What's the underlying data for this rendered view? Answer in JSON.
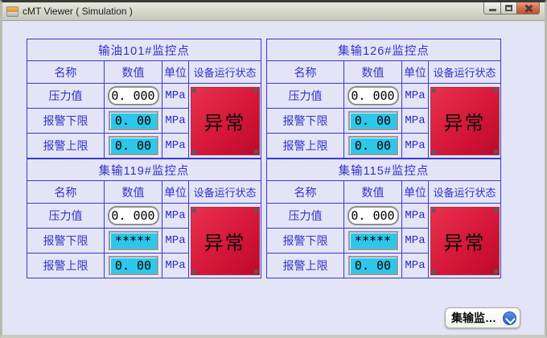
{
  "window": {
    "title": "cMT Viewer ( Simulation )",
    "controls": {
      "minimize_label": "Minimize",
      "maximize_label": "Maximize",
      "close_label": "Close"
    }
  },
  "colors": {
    "accent_blue": "#3333cc",
    "table_border_blue": "#3a3acc",
    "field_cyan": "#2ec6e9",
    "status_red": "#d5173a",
    "content_background": "#e3e4f6",
    "titlebar_gray": "#c8c9ba",
    "close_button_orange": "#c35430",
    "dropdown_circle_blue": "#2c5fc4"
  },
  "column_headers": [
    "名称",
    "数值",
    "单位",
    "设备运行状态"
  ],
  "panels": [
    {
      "title": "输油101#监控点",
      "rows": [
        {
          "name": "压力值",
          "value": "0. 000",
          "unit": "MPa"
        },
        {
          "name": "报警下限",
          "value": "0. 00",
          "unit": "MPa"
        },
        {
          "name": "报警上限",
          "value": "0. 00",
          "unit": "MPa"
        }
      ],
      "status": "异常"
    },
    {
      "title": "集输126#监控点",
      "rows": [
        {
          "name": "压力值",
          "value": "0. 000",
          "unit": "MPa"
        },
        {
          "name": "报警下限",
          "value": "0. 00",
          "unit": "MPa"
        },
        {
          "name": "报警上限",
          "value": "0. 00",
          "unit": "MPa"
        }
      ],
      "status": "异常"
    },
    {
      "title": "集输119#监控点",
      "rows": [
        {
          "name": "压力值",
          "value": "0. 000",
          "unit": "MPa"
        },
        {
          "name": "报警下限",
          "value": "*****",
          "unit": "MPa"
        },
        {
          "name": "报警上限",
          "value": "0. 00",
          "unit": "MPa"
        }
      ],
      "status": "异常"
    },
    {
      "title": "集输115#监控点",
      "rows": [
        {
          "name": "压力值",
          "value": "0. 000",
          "unit": "MPa"
        },
        {
          "name": "报警下限",
          "value": "*****",
          "unit": "MPa"
        },
        {
          "name": "报警上限",
          "value": "0. 00",
          "unit": "MPa"
        }
      ],
      "status": "异常"
    }
  ],
  "dropdown": {
    "label": "集输监…",
    "icon": "chevron-down-circle"
  }
}
